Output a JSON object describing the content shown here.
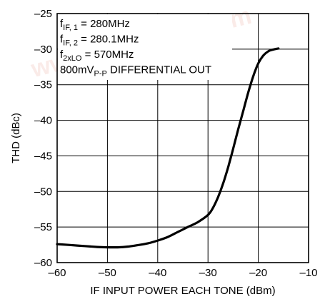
{
  "chart_data": {
    "type": "line",
    "xlabel": "IF INPUT POWER EACH TONE (dBm)",
    "ylabel": "THD (dBc)",
    "xlim": [
      -60,
      -10
    ],
    "ylim": [
      -60,
      -25
    ],
    "x_ticks": [
      -60,
      -50,
      -40,
      -30,
      -20,
      -10
    ],
    "x_tick_labels": [
      "–60",
      "–50",
      "–40",
      "–30",
      "–20",
      "–10"
    ],
    "y_ticks": [
      -25,
      -30,
      -35,
      -40,
      -45,
      -50,
      -55,
      -60
    ],
    "y_tick_labels": [
      "–25",
      "–30",
      "–35",
      "–40",
      "–45",
      "–50",
      "–55",
      "–60"
    ],
    "grid": true,
    "annotations": [
      {
        "base": "f",
        "sub": "IF, 1",
        "rest": " = 280MHz"
      },
      {
        "base": "f",
        "sub": "IF, 2",
        "rest": " = 280.1MHz"
      },
      {
        "base": "f",
        "sub": "2xLO",
        "rest": " = 570MHz"
      },
      {
        "base": "800mV",
        "sub": "P-P",
        "rest": " DIFFERENTIAL OUT"
      }
    ],
    "series": [
      {
        "color": "#000000",
        "x": [
          -60,
          -56,
          -52,
          -50,
          -48,
          -46,
          -44,
          -42,
          -40,
          -38,
          -36,
          -34,
          -32,
          -30,
          -29,
          -28,
          -27,
          -26,
          -25,
          -24,
          -23,
          -22,
          -21,
          -20,
          -19,
          -18,
          -17,
          -16
        ],
        "y": [
          -57.4,
          -57.6,
          -57.8,
          -57.85,
          -57.85,
          -57.75,
          -57.55,
          -57.3,
          -56.9,
          -56.4,
          -55.7,
          -55.0,
          -54.3,
          -53.3,
          -52.3,
          -50.8,
          -48.9,
          -46.6,
          -44.0,
          -41.3,
          -38.7,
          -36.1,
          -33.8,
          -32.0,
          -30.9,
          -30.3,
          -30.05,
          -29.9
        ]
      }
    ]
  },
  "watermark": {
    "text": "www.ElecFans.com",
    "color": "#f2c7c0"
  }
}
